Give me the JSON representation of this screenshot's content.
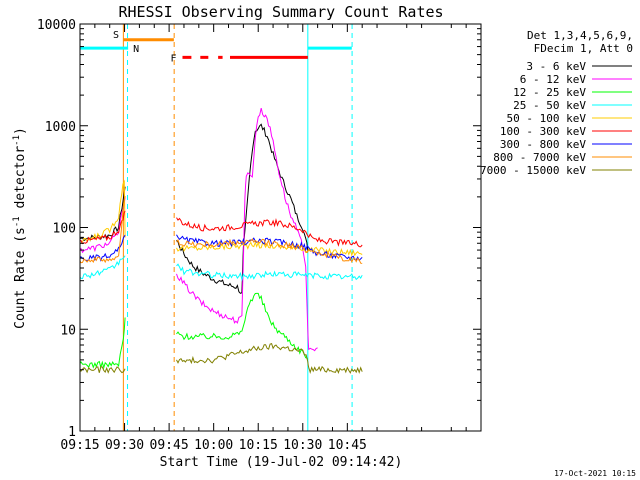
{
  "chart_data": {
    "type": "line",
    "title": "RHESSI Observing Summary Count Rates",
    "xlabel": "Start Time (19-Jul-02 09:14:42)",
    "ylabel_main": "Count Rate (s",
    "ylabel_sup1": "-1",
    "ylabel_mid": " detector",
    "ylabel_sup2": "-1",
    "ylabel_end": ")",
    "yscale": "log",
    "xlim_min": [
      915,
      1050
    ],
    "ylim": [
      1,
      10000
    ],
    "x_ticks": [
      {
        "label": "09:15",
        "min": 915
      },
      {
        "label": "09:30",
        "min": 930
      },
      {
        "label": "09:45",
        "min": 945
      },
      {
        "label": "10:00",
        "min": 960
      },
      {
        "label": "10:15",
        "min": 975
      },
      {
        "label": "10:30",
        "min": 990
      },
      {
        "label": "10:45",
        "min": 1005
      }
    ],
    "y_ticks": [
      {
        "label": "1",
        "value": 1
      },
      {
        "label": "10",
        "value": 10
      },
      {
        "label": "100",
        "value": 100
      },
      {
        "label": "1000",
        "value": 1000
      },
      {
        "label": "10000",
        "value": 10000
      }
    ],
    "legend": {
      "position": "right",
      "header_lines": [
        "Det 1,3,4,5,6,9,",
        "FDecim 1, Att 0"
      ]
    },
    "series": [
      {
        "name": "3 - 6 keV",
        "color": "#000000",
        "x": [
          914.8,
          920,
          925,
          928,
          930.2,
          930.6,
          946.7,
          947.5,
          950,
          953,
          956,
          960,
          965,
          968,
          969.5,
          970,
          971,
          972,
          973,
          974,
          976,
          978,
          980,
          983,
          986,
          988,
          990,
          991,
          991.7
        ],
        "y": [
          78,
          80,
          84,
          100,
          250,
          0,
          0,
          75,
          55,
          42,
          36,
          31,
          27,
          26,
          22,
          60,
          130,
          300,
          600,
          900,
          1000,
          800,
          520,
          300,
          190,
          130,
          100,
          75,
          62
        ]
      },
      {
        "name": "6 - 12 keV",
        "color": "#ff00ff",
        "x": [
          914.8,
          920,
          925,
          928,
          930.2,
          930.6,
          946.7,
          947.5,
          950,
          953,
          956,
          960,
          965,
          968,
          969.5,
          970,
          970.5,
          971,
          972,
          973,
          974,
          975,
          976,
          978,
          980,
          982,
          984,
          986,
          988,
          990,
          991,
          991.7,
          992,
          995
        ],
        "y": [
          60,
          63,
          70,
          90,
          200,
          0,
          0,
          35,
          28,
          22,
          18,
          15,
          13,
          12,
          13,
          50,
          200,
          320,
          360,
          300,
          800,
          1250,
          1400,
          1200,
          700,
          350,
          200,
          130,
          95,
          65,
          42,
          10,
          6,
          6.5
        ]
      },
      {
        "name": "12 - 25 keV",
        "color": "#00ff00",
        "x": [
          914.8,
          920,
          925,
          928,
          929.6,
          930.2,
          930.6,
          946.7,
          947.5,
          950,
          955,
          960,
          965,
          968,
          969,
          970,
          971,
          972,
          974,
          976,
          978,
          980,
          982,
          984,
          986,
          988,
          990,
          991,
          991.7
        ],
        "y": [
          4.5,
          4.5,
          4.5,
          4.5,
          8,
          13,
          0,
          0,
          9,
          8.5,
          8.5,
          8.5,
          8.5,
          9,
          9,
          11,
          14,
          18,
          23,
          20,
          14,
          11,
          9.5,
          8.5,
          7.5,
          6.5,
          6,
          5.5,
          5
        ]
      },
      {
        "name": "25 - 50 keV",
        "color": "#00ffff",
        "x": [
          914.8,
          920,
          925,
          928,
          930.2,
          930.6,
          946.7,
          947.5,
          950,
          960,
          970,
          975,
          980,
          990,
          1000,
          1010
        ],
        "y": [
          33,
          35,
          38,
          45,
          55,
          0,
          0,
          42,
          37,
          34,
          33,
          34,
          35,
          34,
          33,
          32.5
        ]
      },
      {
        "name": "50 - 100 keV",
        "color": "#ffcc00",
        "x": [
          914.8,
          920,
          925,
          928,
          929,
          929.9,
          930.2,
          930.6,
          946.7,
          947.5,
          950,
          955,
          960,
          965,
          970,
          975,
          980,
          985,
          990,
          995,
          1000,
          1005,
          1010
        ],
        "y": [
          70,
          80,
          95,
          130,
          220,
          300,
          80,
          0,
          0,
          63,
          62,
          63,
          64,
          65,
          66,
          67,
          66,
          64,
          62,
          60,
          58,
          57,
          56
        ]
      },
      {
        "name": "100 - 300 keV",
        "color": "#ff0000",
        "x": [
          914.8,
          920,
          925,
          928,
          929.5,
          930.2,
          930.6,
          946.7,
          947.5,
          950,
          955,
          960,
          965,
          970,
          975,
          980,
          985,
          990,
          993,
          995,
          1000,
          1005,
          1010
        ],
        "y": [
          73,
          76,
          80,
          95,
          120,
          140,
          0,
          0,
          125,
          110,
          100,
          98,
          100,
          105,
          110,
          112,
          105,
          95,
          78,
          75,
          72,
          70,
          69
        ]
      },
      {
        "name": "300 - 800 keV",
        "color": "#0000ff",
        "x": [
          914.8,
          920,
          925,
          928,
          930.2,
          930.6,
          946.7,
          947.5,
          950,
          955,
          960,
          965,
          970,
          975,
          980,
          985,
          990,
          993,
          995,
          1000,
          1005,
          1010
        ],
        "y": [
          49,
          50,
          52,
          60,
          80,
          0,
          0,
          85,
          76,
          72,
          70,
          70,
          72,
          74,
          73,
          70,
          66,
          60,
          56,
          53,
          51,
          50
        ]
      },
      {
        "name": "800 - 7000 keV",
        "color": "#ff8c00",
        "x": [
          914.8,
          920,
          925,
          928,
          929.5,
          930.2,
          930.6,
          946.7,
          947.5,
          950,
          955,
          960,
          965,
          970,
          975,
          980,
          985,
          990,
          995,
          1000,
          1005,
          1010
        ],
        "y": [
          48,
          48,
          49,
          50,
          150,
          200,
          0,
          0,
          72,
          70,
          68,
          68,
          70,
          72,
          72,
          70,
          67,
          62,
          57,
          52,
          49,
          46
        ]
      },
      {
        "name": "7000 - 15000 keV",
        "color": "#808000",
        "x": [
          914.8,
          920,
          925,
          928,
          930.2,
          930.6,
          946.7,
          947.5,
          950,
          955,
          960,
          965,
          970,
          975,
          980,
          985,
          990,
          991.7,
          992,
          995,
          1000,
          1005,
          1010
        ],
        "y": [
          4,
          4,
          4,
          4,
          4,
          0,
          0,
          5,
          4.8,
          5,
          5,
          5.5,
          6,
          6.5,
          6.8,
          6.5,
          6,
          5,
          4,
          4,
          4,
          4,
          4
        ]
      }
    ],
    "annotations": {
      "saa": {
        "label": "S",
        "color": "#ff8c00",
        "x_start": 929.5,
        "x_end": 946.6,
        "y": 7000
      },
      "night": [
        {
          "label": "N",
          "color": "#00ffff",
          "x_start": 914.8,
          "x_end": 931.2,
          "y": 5800
        },
        {
          "color": "#00ffff",
          "x_start": 991.7,
          "x_end": 1006.5,
          "y": 5800
        }
      ],
      "flare": {
        "label": "F",
        "color": "#ff0000",
        "segments": [
          [
            949.5,
            952.5
          ],
          [
            955.5,
            958.2
          ],
          [
            961.5,
            963
          ],
          [
            965.5,
            991.7
          ]
        ],
        "y": 4700
      },
      "vlines": [
        {
          "x": 914.8,
          "color": "#00ffff",
          "style": "solid"
        },
        {
          "x": 929.6,
          "color": "#ff8c00",
          "style": "solid"
        },
        {
          "x": 931.0,
          "color": "#00ffff",
          "style": "dashed"
        },
        {
          "x": 946.7,
          "color": "#ff8c00",
          "style": "dashed"
        },
        {
          "x": 991.7,
          "color": "#00ffff",
          "style": "solid"
        },
        {
          "x": 1006.6,
          "color": "#00ffff",
          "style": "dashed"
        }
      ]
    },
    "footer_date": "17-Oct-2021 10:15"
  }
}
